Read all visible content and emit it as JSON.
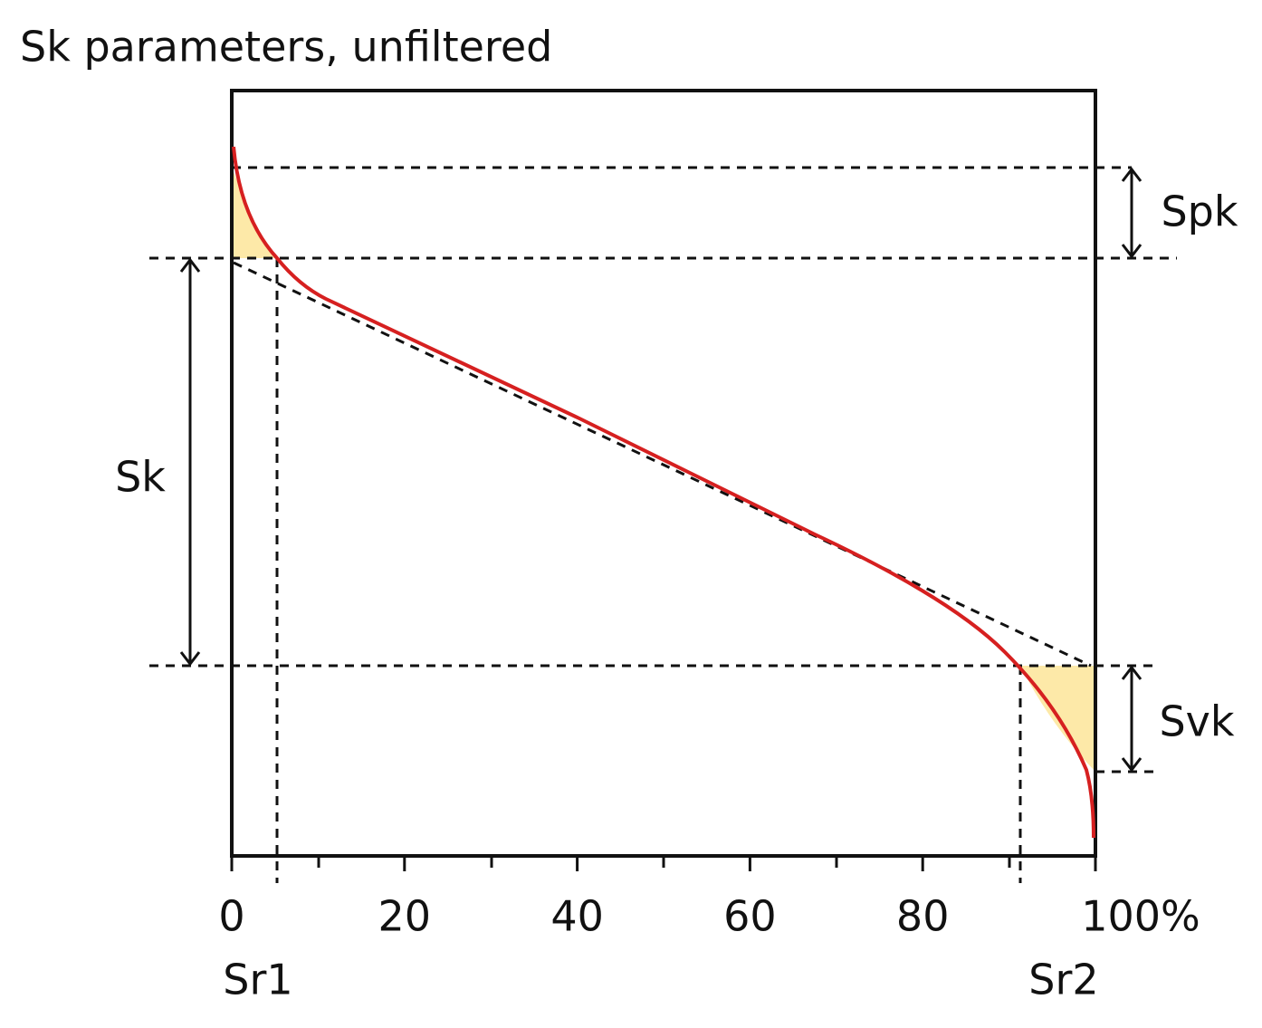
{
  "title": "Sk parameters, unfiltered",
  "x_axis": {
    "xlim": [
      0,
      100
    ],
    "ticks": [
      0,
      20,
      40,
      60,
      80,
      {
        "value": 100,
        "label": "100%"
      }
    ]
  },
  "labels": {
    "sr1": "Sr1",
    "sr2": "Sr2",
    "sk": "Sk",
    "spk": "Spk",
    "svk": "Svk"
  }
}
